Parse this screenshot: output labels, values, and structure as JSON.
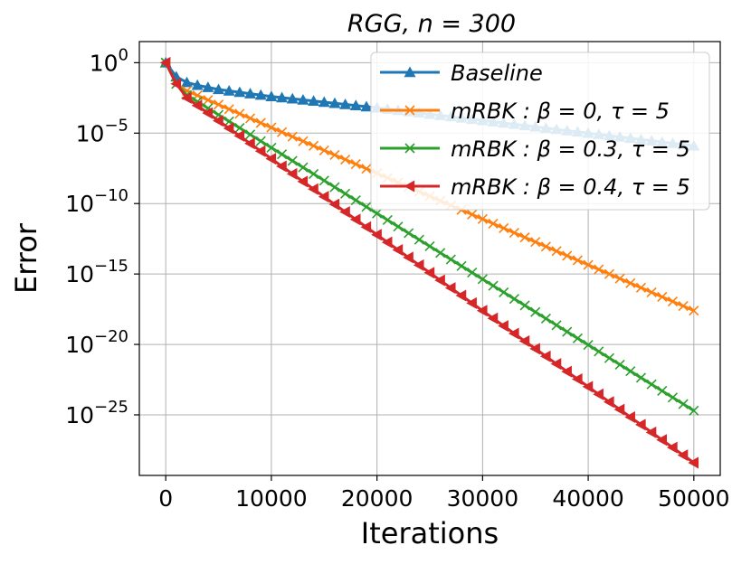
{
  "chart_data": {
    "type": "line",
    "title": "RGG,    n = 300",
    "xlabel": "Iterations",
    "ylabel": "Error",
    "yscale": "log",
    "grid": true,
    "xlim": [
      -2500,
      52500
    ],
    "ylim_exp": [
      -29.3,
      1.5
    ],
    "xticks": [
      0,
      10000,
      20000,
      30000,
      40000,
      50000
    ],
    "xtick_labels": [
      "0",
      "10000",
      "20000",
      "30000",
      "40000",
      "50000"
    ],
    "yticks_exp": [
      0,
      -5,
      -10,
      -15,
      -20,
      -25
    ],
    "ytick_mantissa": "10",
    "ytick_exponents": [
      "0",
      "−5",
      "−10",
      "−15",
      "−20",
      "−25"
    ],
    "x_start": 0,
    "x_step": 1000,
    "points_per_series": 51,
    "legend_position": "upper right",
    "series": [
      {
        "name": "Baseline",
        "legend_label": "Baseline",
        "color": "#1f77b4",
        "marker": "triangle-up",
        "log10_values_anchor_x": [
          0,
          1000,
          2000,
          3000,
          5000,
          10000,
          20000,
          30000,
          40000,
          50000
        ],
        "log10_values_anchor_y": [
          0,
          -1.0,
          -1.4,
          -1.6,
          -1.9,
          -2.4,
          -3.2,
          -4.1,
          -5.0,
          -5.9
        ]
      },
      {
        "name": "mRBK: β = 0, τ = 5",
        "legend_label": "mRBK : β = 0, τ = 5",
        "color": "#ff7f0e",
        "marker": "x",
        "log10_values_anchor_x": [
          0,
          1000,
          2000,
          50000
        ],
        "log10_values_anchor_y": [
          0,
          -1.5,
          -2.0,
          -17.6
        ]
      },
      {
        "name": "mRBK: β = 0.3, τ = 5",
        "legend_label": "mRBK : β = 0.3, τ = 5",
        "color": "#2ca02c",
        "marker": "x",
        "log10_values_anchor_x": [
          0,
          1000,
          2000,
          50000
        ],
        "log10_values_anchor_y": [
          0,
          -1.5,
          -2.3,
          -24.7
        ]
      },
      {
        "name": "mRBK: β = 0.4, τ = 5",
        "legend_label": "mRBK : β = 0.4, τ = 5",
        "color": "#d62728",
        "marker": "triangle-left",
        "log10_values_anchor_x": [
          0,
          1000,
          2000,
          50000
        ],
        "log10_values_anchor_y": [
          0,
          -1.5,
          -2.5,
          -28.4
        ]
      }
    ]
  }
}
